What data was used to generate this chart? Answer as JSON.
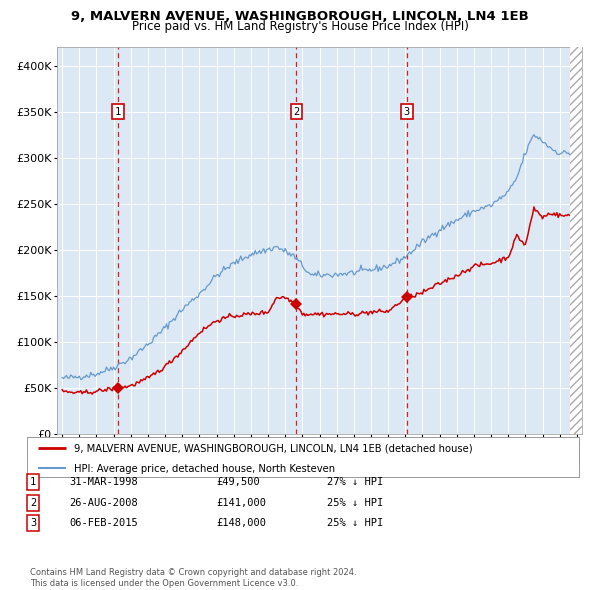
{
  "title1": "9, MALVERN AVENUE, WASHINGBOROUGH, LINCOLN, LN4 1EB",
  "title2": "Price paid vs. HM Land Registry's House Price Index (HPI)",
  "legend1": "9, MALVERN AVENUE, WASHINGBOROUGH, LINCOLN, LN4 1EB (detached house)",
  "legend2": "HPI: Average price, detached house, North Kesteven",
  "sale_dates": [
    1998.25,
    2008.65,
    2015.09
  ],
  "sale_prices": [
    49500,
    141000,
    148000
  ],
  "sale_labels": [
    "1",
    "2",
    "3"
  ],
  "table_rows": [
    [
      "1",
      "31-MAR-1998",
      "£49,500",
      "27% ↓ HPI"
    ],
    [
      "2",
      "26-AUG-2008",
      "£141,000",
      "25% ↓ HPI"
    ],
    [
      "3",
      "06-FEB-2015",
      "£148,000",
      "25% ↓ HPI"
    ]
  ],
  "footer": "Contains HM Land Registry data © Crown copyright and database right 2024.\nThis data is licensed under the Open Government Licence v3.0.",
  "red_color": "#cc0000",
  "blue_color": "#6699cc",
  "bg_color": "#dce9f5",
  "grid_color": "#ffffff",
  "ylim": [
    0,
    420000
  ],
  "yticks": [
    0,
    50000,
    100000,
    150000,
    200000,
    250000,
    300000,
    350000,
    400000
  ],
  "xlim_left": 1994.7,
  "xlim_right": 2025.3,
  "hpi_key_years": [
    1995,
    1996,
    1997,
    1998,
    1999,
    2000,
    2001,
    2002,
    2003,
    2004,
    2005,
    2006,
    2007,
    2007.5,
    2008.5,
    2009.5,
    2010,
    2011,
    2012,
    2013,
    2014,
    2015,
    2016,
    2017,
    2018,
    2019,
    2020,
    2021,
    2021.5,
    2022,
    2022.5,
    2023,
    2023.5,
    2024,
    2025
  ],
  "hpi_key_vals": [
    60000,
    62000,
    65000,
    72000,
    82000,
    97000,
    115000,
    135000,
    152000,
    172000,
    185000,
    195000,
    200000,
    203000,
    193000,
    172000,
    172000,
    173000,
    175000,
    178000,
    182000,
    192000,
    208000,
    222000,
    232000,
    242000,
    248000,
    262000,
    278000,
    305000,
    325000,
    318000,
    310000,
    305000,
    305000
  ],
  "red_key_years": [
    1995,
    1996,
    1997,
    1998.0,
    1998.25,
    1999,
    2000,
    2001,
    2002,
    2003,
    2004,
    2005,
    2006,
    2007,
    2007.5,
    2008.0,
    2008.65,
    2009,
    2010,
    2011,
    2012,
    2013,
    2014,
    2015.0,
    2015.09,
    2016,
    2017,
    2018,
    2019,
    2020,
    2021,
    2021.5,
    2022,
    2022.5,
    2023,
    2023.5,
    2024,
    2025
  ],
  "red_key_vals": [
    46000,
    44000,
    46000,
    49000,
    49500,
    52000,
    60000,
    73000,
    90000,
    110000,
    123000,
    128000,
    130000,
    132000,
    148000,
    148000,
    141000,
    130000,
    130000,
    130000,
    130000,
    132000,
    133000,
    147000,
    148000,
    153000,
    163000,
    172000,
    182000,
    185000,
    192000,
    215000,
    205000,
    245000,
    235000,
    240000,
    237000,
    237000
  ]
}
